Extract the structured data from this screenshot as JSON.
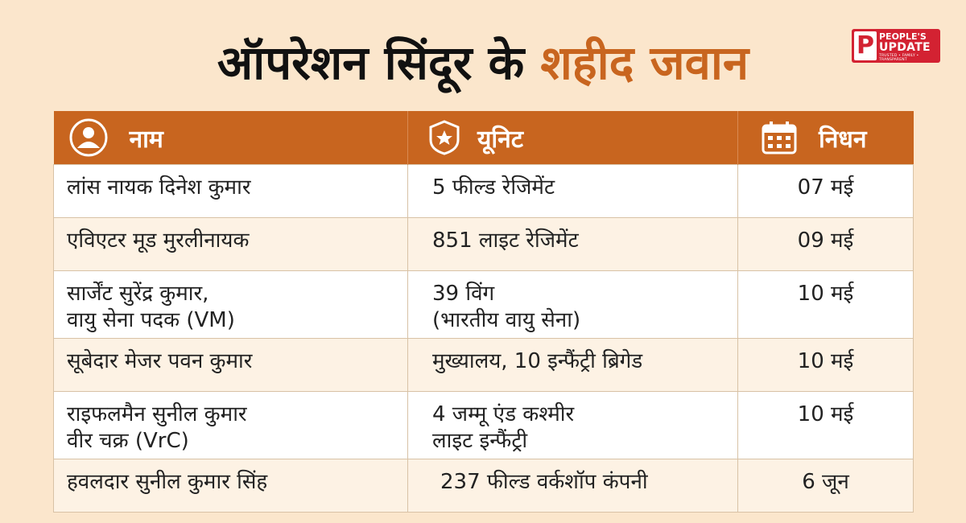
{
  "title": {
    "part1": "ऑपरेशन सिंदूर के",
    "part2": "शहीद जवान"
  },
  "colors": {
    "accent": "#c8651f",
    "header_bg": "#c8651f",
    "page_bg": "#fbe6cc",
    "logo_red": "#d32232"
  },
  "logo": {
    "mark": "P",
    "line1": "PEOPLE'S",
    "line2": "UPDATE",
    "line3": "TRUSTED • FAMILY • TRANSPARENT"
  },
  "table": {
    "headers": [
      {
        "label": "नाम",
        "icon": "user-icon"
      },
      {
        "label": "यूनिट",
        "icon": "star-badge-icon"
      },
      {
        "label": "निधन",
        "icon": "calendar-icon"
      }
    ],
    "rows": [
      {
        "name": [
          "लांस नायक दिनेश कुमार"
        ],
        "unit": [
          "5 फील्ड रेजिमेंट"
        ],
        "date": "07 मई"
      },
      {
        "name": [
          "एविएटर मूड मुरलीनायक"
        ],
        "unit": [
          "851 लाइट रेजिमेंट"
        ],
        "date": "09 मई"
      },
      {
        "name": [
          "सार्जेंट सुरेंद्र कुमार,",
          "वायु सेना पदक (VM)"
        ],
        "unit": [
          "39 विंग",
          "(भारतीय वायु सेना)"
        ],
        "date": "10 मई"
      },
      {
        "name": [
          "सूबेदार मेजर पवन कुमार"
        ],
        "unit": [
          "मुख्यालय, 10 इन्फैंट्री ब्रिगेड"
        ],
        "date": "10 मई"
      },
      {
        "name": [
          "राइफलमैन सुनील कुमार",
          "वीर चक्र (VrC)"
        ],
        "unit": [
          "4 जम्मू एंड कश्मीर",
          "लाइट इन्फैंट्री"
        ],
        "date": "10 मई"
      },
      {
        "name": [
          "हवलदार सुनील कुमार सिंह"
        ],
        "unit": [
          "237 फील्ड वर्कशॉप कंपनी"
        ],
        "date": "6 जून"
      }
    ]
  }
}
